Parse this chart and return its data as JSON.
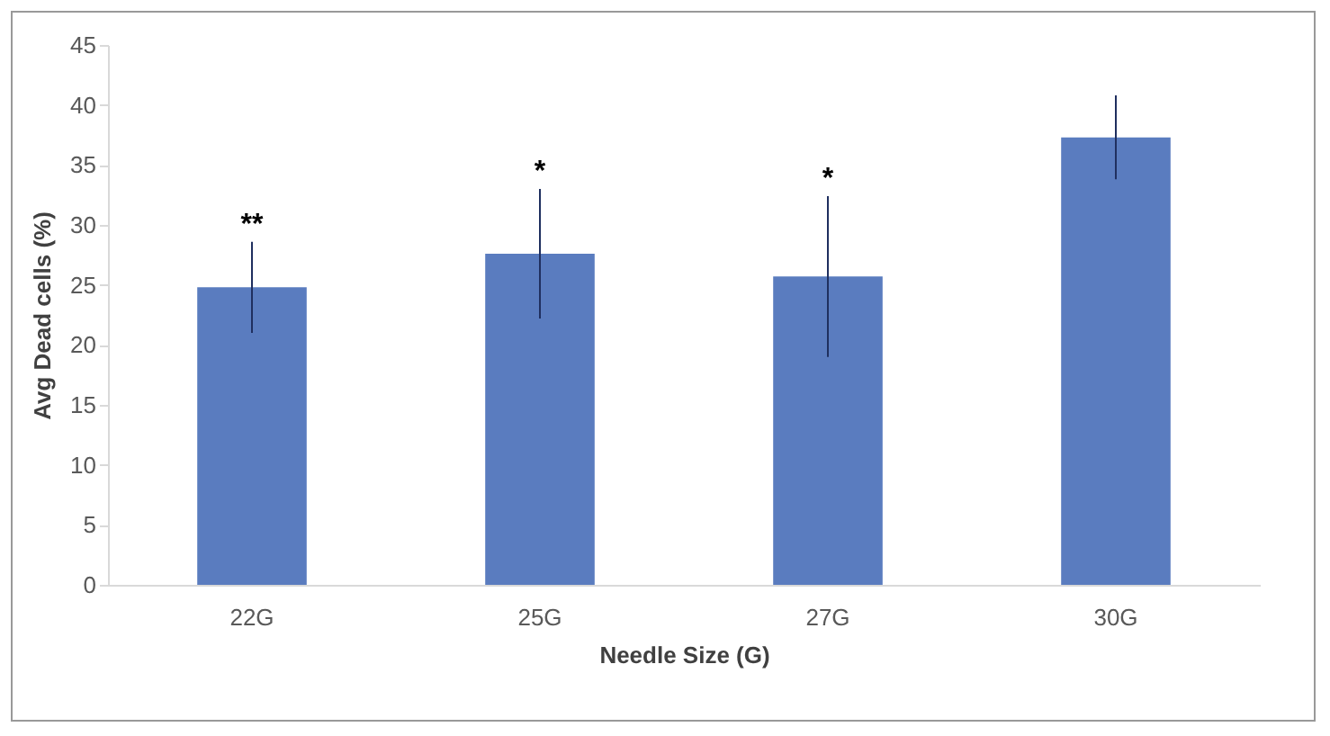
{
  "chart_data": {
    "type": "bar",
    "xlabel": "Needle Size (G)",
    "ylabel": "Avg Dead cells (%)",
    "categories": [
      "22G",
      "25G",
      "27G",
      "30G"
    ],
    "values": [
      24.8,
      27.6,
      25.7,
      37.3
    ],
    "errors": [
      3.8,
      5.4,
      6.7,
      3.5
    ],
    "color": "#5a7cbf",
    "ylim": [
      0,
      45
    ],
    "yticks": [
      0,
      5,
      10,
      15,
      20,
      25,
      30,
      35,
      40,
      45
    ],
    "grid": false,
    "annotations": [
      {
        "text": "**",
        "x": "22G",
        "y": 28.6
      },
      {
        "text": "*",
        "x": "25G",
        "y": 33
      },
      {
        "text": "*",
        "x": "27G",
        "y": 32.4
      }
    ]
  }
}
